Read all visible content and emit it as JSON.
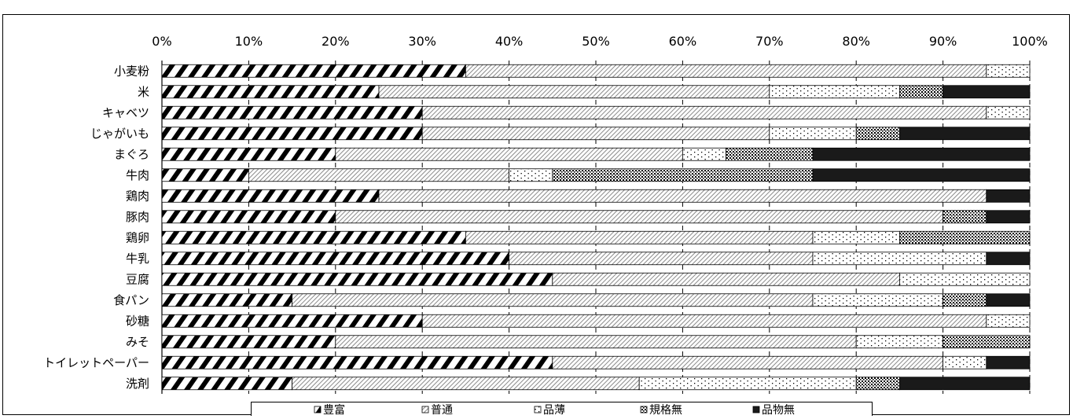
{
  "chart_data": {
    "type": "bar",
    "orientation": "horizontal",
    "stacked": true,
    "percent": true,
    "xlim": [
      0,
      100
    ],
    "x_ticks": [
      "0%",
      "10%",
      "20%",
      "30%",
      "40%",
      "50%",
      "60%",
      "70%",
      "80%",
      "90%",
      "100%"
    ],
    "x_axis_position": "top",
    "grid": "vertical dashed",
    "legend_position": "bottom",
    "categories": [
      "小麦粉",
      "米",
      "キャベツ",
      "じゃがいも",
      "まぐろ",
      "牛肉",
      "鶏肉",
      "豚肉",
      "鶏卵",
      "牛乳",
      "豆腐",
      "食パン",
      "砂糖",
      "みそ",
      "トイレットペーパー",
      "洗剤"
    ],
    "series": [
      {
        "name": "豊富",
        "pattern": "bold-diagonal",
        "values": [
          35,
          25,
          30,
          30,
          20,
          10,
          25,
          20,
          35,
          40,
          45,
          15,
          30,
          20,
          45,
          15
        ]
      },
      {
        "name": "普通",
        "pattern": "fine-diagonal",
        "values": [
          60,
          45,
          65,
          40,
          40,
          30,
          70,
          70,
          40,
          35,
          40,
          60,
          65,
          60,
          45,
          40
        ]
      },
      {
        "name": "品薄",
        "pattern": "sparse-dots",
        "values": [
          5,
          15,
          5,
          10,
          5,
          5,
          0,
          0,
          10,
          20,
          15,
          15,
          5,
          10,
          5,
          25
        ]
      },
      {
        "name": "規格無",
        "pattern": "dense-dots",
        "values": [
          0,
          5,
          0,
          5,
          10,
          30,
          0,
          5,
          15,
          0,
          0,
          5,
          0,
          10,
          0,
          5
        ]
      },
      {
        "name": "品物無",
        "pattern": "solid-black",
        "values": [
          0,
          10,
          0,
          15,
          25,
          25,
          5,
          5,
          0,
          5,
          0,
          5,
          0,
          0,
          5,
          15
        ]
      }
    ]
  }
}
